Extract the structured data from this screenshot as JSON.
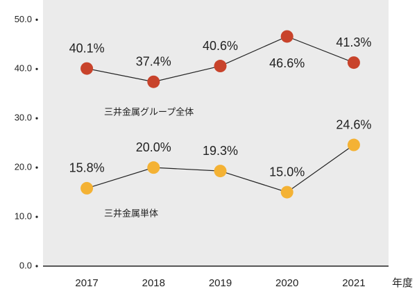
{
  "chart_data": {
    "type": "line",
    "categories": [
      "2017",
      "2018",
      "2019",
      "2020",
      "2021"
    ],
    "x_label": "年度",
    "series": [
      {
        "name": "三井金属グループ全体",
        "color": "#c8432b",
        "values": [
          40.1,
          37.4,
          40.6,
          46.6,
          41.3
        ],
        "value_labels": [
          "40.1%",
          "37.4%",
          "40.6%",
          "46.6%",
          "41.3%"
        ]
      },
      {
        "name": "三井金属単体",
        "color": "#f4b234",
        "values": [
          15.8,
          20.0,
          19.3,
          15.0,
          24.6
        ],
        "value_labels": [
          "15.8%",
          "20.0%",
          "19.3%",
          "15.0%",
          "24.6%"
        ]
      }
    ],
    "ylim": [
      0,
      54
    ],
    "yticks": [
      {
        "value": 0,
        "label": "0.0"
      },
      {
        "value": 10,
        "label": "10.0"
      },
      {
        "value": 20,
        "label": "20.0"
      },
      {
        "value": 30,
        "label": "30.0"
      },
      {
        "value": 40,
        "label": "40.0"
      },
      {
        "value": 50,
        "label": "50.0"
      }
    ]
  }
}
